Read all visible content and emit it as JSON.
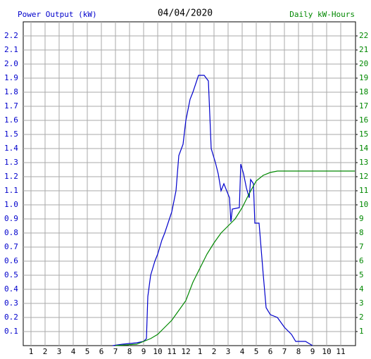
{
  "chart_data": {
    "type": "line",
    "title": "04/04/2020",
    "y_label": "Power Output (kW)",
    "y2_label": "Daily kW-Hours",
    "xlim": [
      0.45,
      24.05
    ],
    "xticks": [
      1,
      2,
      3,
      4,
      5,
      6,
      7,
      8,
      9,
      10,
      11,
      12,
      {
        "value": 13,
        "label": "1"
      },
      {
        "value": 14,
        "label": "2"
      },
      {
        "value": 15,
        "label": "3"
      },
      {
        "value": 16,
        "label": "4"
      },
      {
        "value": 17,
        "label": "5"
      },
      {
        "value": 18,
        "label": "6"
      },
      {
        "value": 19,
        "label": "7"
      },
      {
        "value": 20,
        "label": "8"
      },
      {
        "value": 21,
        "label": "9"
      },
      {
        "value": 22,
        "label": "10"
      },
      {
        "value": 23,
        "label": "11"
      }
    ],
    "ylim": [
      0,
      2.3
    ],
    "yticks": [
      0.1,
      0.2,
      0.3,
      0.4,
      0.5,
      0.6,
      0.7,
      0.8,
      0.9,
      {
        "value": 1,
        "label": "1.0"
      },
      1.1,
      1.2,
      1.3,
      1.4,
      1.5,
      1.6,
      1.7,
      1.8,
      1.9,
      {
        "value": 2,
        "label": "2.0"
      },
      2.1,
      2.2
    ],
    "y2lim": [
      0,
      23
    ],
    "y2ticks": [
      1,
      2,
      3,
      4,
      5,
      6,
      7,
      8,
      9,
      10,
      11,
      12,
      13,
      14,
      15,
      16,
      17,
      18,
      19,
      20,
      21,
      22
    ],
    "grid": true,
    "series": [
      {
        "name": "Power Output (kW)",
        "color": "#0000cc",
        "x": [
          6.8,
          7.5,
          8.5,
          9,
          9.2,
          9.3,
          9.5,
          9.8,
          10,
          10.3,
          10.5,
          11,
          11.3,
          11.5,
          11.8,
          12,
          12.3,
          12.5,
          12.9,
          13.3,
          13.6,
          13.8,
          14.1,
          14.3,
          14.5,
          14.7,
          15.1,
          15.2,
          15.3,
          15.8,
          15.9,
          16.1,
          16.3,
          16.5,
          16.6,
          16.8,
          16.9,
          17.2,
          17.5,
          17.7,
          18,
          18.5,
          19,
          19.5,
          19.8,
          20.5,
          21
        ],
        "values": [
          0,
          0.01,
          0.02,
          0.03,
          0.05,
          0.35,
          0.5,
          0.6,
          0.65,
          0.75,
          0.8,
          0.95,
          1.1,
          1.35,
          1.43,
          1.6,
          1.75,
          1.8,
          1.92,
          1.92,
          1.88,
          1.4,
          1.3,
          1.22,
          1.1,
          1.15,
          1.05,
          0.88,
          0.97,
          0.98,
          1.29,
          1.22,
          1.12,
          1.05,
          1.18,
          1.15,
          0.87,
          0.87,
          0.5,
          0.27,
          0.22,
          0.2,
          0.13,
          0.08,
          0.03,
          0.03,
          0
        ]
      },
      {
        "name": "Daily kW-Hours",
        "color": "#008800",
        "axis": "y2",
        "x": [
          7,
          8.5,
          9.5,
          10,
          10.5,
          11,
          11.5,
          12,
          12.5,
          13,
          13.5,
          14,
          14.5,
          15,
          15.5,
          16,
          16.5,
          17,
          17.5,
          18,
          18.5,
          24
        ],
        "values": [
          0,
          0.1,
          0.5,
          0.8,
          1.3,
          1.8,
          2.5,
          3.2,
          4.5,
          5.5,
          6.5,
          7.3,
          8,
          8.5,
          9,
          9.8,
          10.8,
          11.7,
          12.1,
          12.3,
          12.4,
          12.4
        ]
      }
    ]
  }
}
